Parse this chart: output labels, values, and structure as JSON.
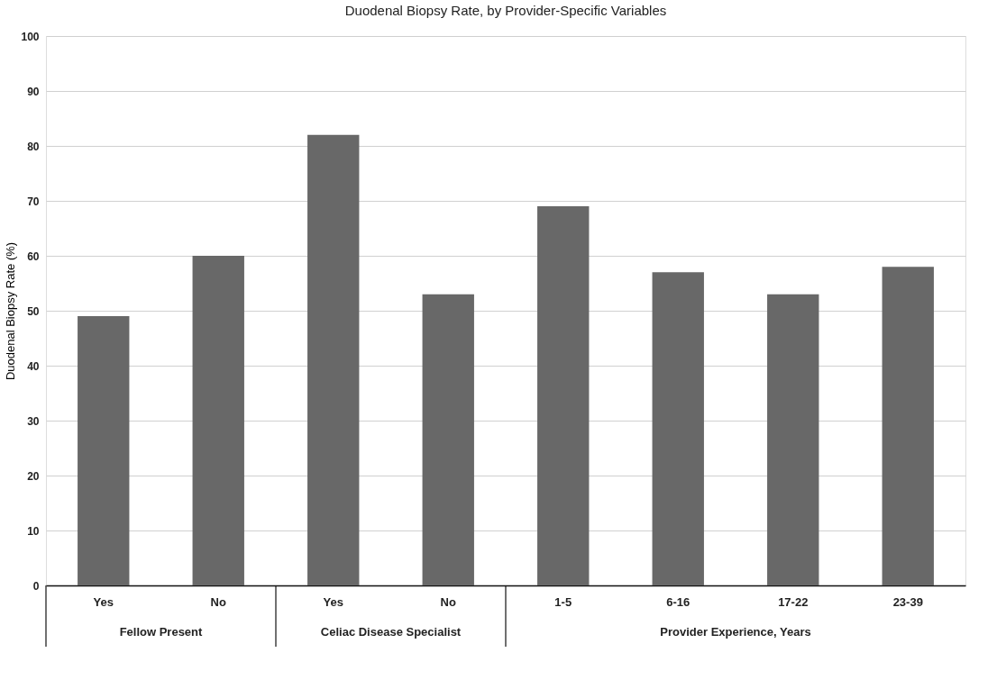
{
  "chart_data": {
    "type": "bar",
    "title": "Duodenal Biopsy Rate, by Provider-Specific Variables",
    "ylabel": "Duodenal Biopsy Rate (%)",
    "categories": [
      "Yes",
      "No",
      "Yes",
      "No",
      "1-5",
      "6-16",
      "17-22",
      "23-39"
    ],
    "values": [
      49,
      60,
      82,
      53,
      69,
      57,
      53,
      58
    ],
    "color": "#686868",
    "ylim": [
      0,
      100
    ],
    "yticks": [
      0,
      10,
      20,
      30,
      40,
      50,
      60,
      70,
      80,
      90,
      100
    ],
    "grid": "y",
    "annotations": [
      "Fellow Present",
      "Celiac Disease Specialist",
      "Provider Experience, Years"
    ]
  }
}
